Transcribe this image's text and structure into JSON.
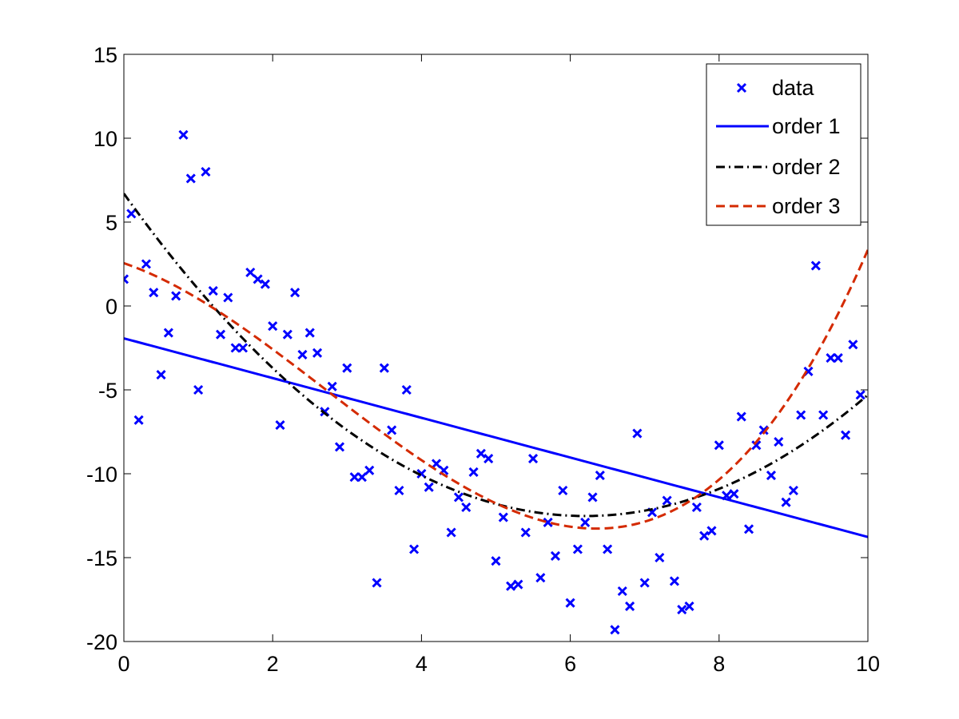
{
  "chart_data": {
    "type": "scatter",
    "title": "",
    "xlabel": "",
    "ylabel": "",
    "xlim": [
      0,
      10
    ],
    "ylim": [
      -20,
      15
    ],
    "x_ticks": [
      "0",
      "2",
      "4",
      "6",
      "8",
      "10"
    ],
    "y_ticks": [
      "15",
      "10",
      "5",
      "0",
      "-5",
      "-10",
      "-15",
      "-20"
    ],
    "grid": false,
    "legend_position": "top-right",
    "series": [
      {
        "name": "data",
        "type": "scatter",
        "marker": "x",
        "color": "#0000ff",
        "points": [
          [
            0.0,
            1.6
          ],
          [
            0.1,
            5.5
          ],
          [
            0.2,
            -6.8
          ],
          [
            0.3,
            2.5
          ],
          [
            0.4,
            0.8
          ],
          [
            0.5,
            -4.1
          ],
          [
            0.6,
            -1.6
          ],
          [
            0.7,
            0.6
          ],
          [
            0.8,
            10.2
          ],
          [
            0.9,
            7.6
          ],
          [
            1.0,
            -5.0
          ],
          [
            1.1,
            8.0
          ],
          [
            1.2,
            0.9
          ],
          [
            1.3,
            -1.7
          ],
          [
            1.4,
            0.5
          ],
          [
            1.5,
            -2.5
          ],
          [
            1.6,
            -2.5
          ],
          [
            1.7,
            2.0
          ],
          [
            1.8,
            1.6
          ],
          [
            1.9,
            1.3
          ],
          [
            2.0,
            -1.2
          ],
          [
            2.1,
            -7.1
          ],
          [
            2.2,
            -1.7
          ],
          [
            2.3,
            0.8
          ],
          [
            2.4,
            -2.9
          ],
          [
            2.5,
            -1.6
          ],
          [
            2.6,
            -2.8
          ],
          [
            2.7,
            -6.3
          ],
          [
            2.8,
            -4.8
          ],
          [
            2.9,
            -8.4
          ],
          [
            3.0,
            -3.7
          ],
          [
            3.1,
            -10.2
          ],
          [
            3.2,
            -10.2
          ],
          [
            3.3,
            -9.8
          ],
          [
            3.4,
            -16.5
          ],
          [
            3.5,
            -3.7
          ],
          [
            3.6,
            -7.4
          ],
          [
            3.7,
            -11.0
          ],
          [
            3.8,
            -5.0
          ],
          [
            3.9,
            -14.5
          ],
          [
            4.0,
            -10.0
          ],
          [
            4.1,
            -10.8
          ],
          [
            4.2,
            -9.4
          ],
          [
            4.3,
            -9.8
          ],
          [
            4.4,
            -13.5
          ],
          [
            4.5,
            -11.4
          ],
          [
            4.6,
            -12.0
          ],
          [
            4.7,
            -9.9
          ],
          [
            4.8,
            -8.8
          ],
          [
            4.9,
            -9.1
          ],
          [
            5.0,
            -15.2
          ],
          [
            5.1,
            -12.6
          ],
          [
            5.2,
            -16.7
          ],
          [
            5.3,
            -16.6
          ],
          [
            5.4,
            -13.5
          ],
          [
            5.5,
            -9.1
          ],
          [
            5.6,
            -16.2
          ],
          [
            5.7,
            -12.9
          ],
          [
            5.8,
            -14.9
          ],
          [
            5.9,
            -11.0
          ],
          [
            6.0,
            -17.7
          ],
          [
            6.1,
            -14.5
          ],
          [
            6.2,
            -12.9
          ],
          [
            6.3,
            -11.4
          ],
          [
            6.4,
            -10.1
          ],
          [
            6.5,
            -14.5
          ],
          [
            6.6,
            -19.3
          ],
          [
            6.7,
            -17.0
          ],
          [
            6.8,
            -17.9
          ],
          [
            6.9,
            -7.6
          ],
          [
            7.0,
            -16.5
          ],
          [
            7.1,
            -12.3
          ],
          [
            7.2,
            -15.0
          ],
          [
            7.3,
            -11.6
          ],
          [
            7.4,
            -16.4
          ],
          [
            7.5,
            -18.1
          ],
          [
            7.6,
            -17.9
          ],
          [
            7.7,
            -12.0
          ],
          [
            7.8,
            -13.7
          ],
          [
            7.9,
            -13.4
          ],
          [
            8.0,
            -8.3
          ],
          [
            8.1,
            -11.3
          ],
          [
            8.2,
            -11.2
          ],
          [
            8.3,
            -6.6
          ],
          [
            8.4,
            -13.3
          ],
          [
            8.5,
            -8.3
          ],
          [
            8.6,
            -7.4
          ],
          [
            8.7,
            -10.1
          ],
          [
            8.8,
            -8.1
          ],
          [
            8.9,
            -11.7
          ],
          [
            9.0,
            -11.0
          ],
          [
            9.1,
            -6.5
          ],
          [
            9.2,
            -3.9
          ],
          [
            9.3,
            2.4
          ],
          [
            9.4,
            -6.5
          ],
          [
            9.5,
            -3.1
          ],
          [
            9.6,
            -3.1
          ],
          [
            9.7,
            -7.7
          ],
          [
            9.8,
            -2.3
          ],
          [
            9.9,
            -5.3
          ]
        ]
      },
      {
        "name": "order 1",
        "type": "line",
        "style": "solid",
        "color": "#0000ff",
        "coefficients": [
          -1.93,
          -1.184
        ]
      },
      {
        "name": "order 2",
        "type": "line",
        "style": "dashdot",
        "color": "#000000",
        "coefficients": [
          6.7,
          -6.2,
          0.5
        ]
      },
      {
        "name": "order 3",
        "type": "line",
        "style": "dashed",
        "color": "#d42a00",
        "coefficients": [
          2.55,
          -1.51,
          -0.7,
          0.0859
        ]
      }
    ]
  }
}
